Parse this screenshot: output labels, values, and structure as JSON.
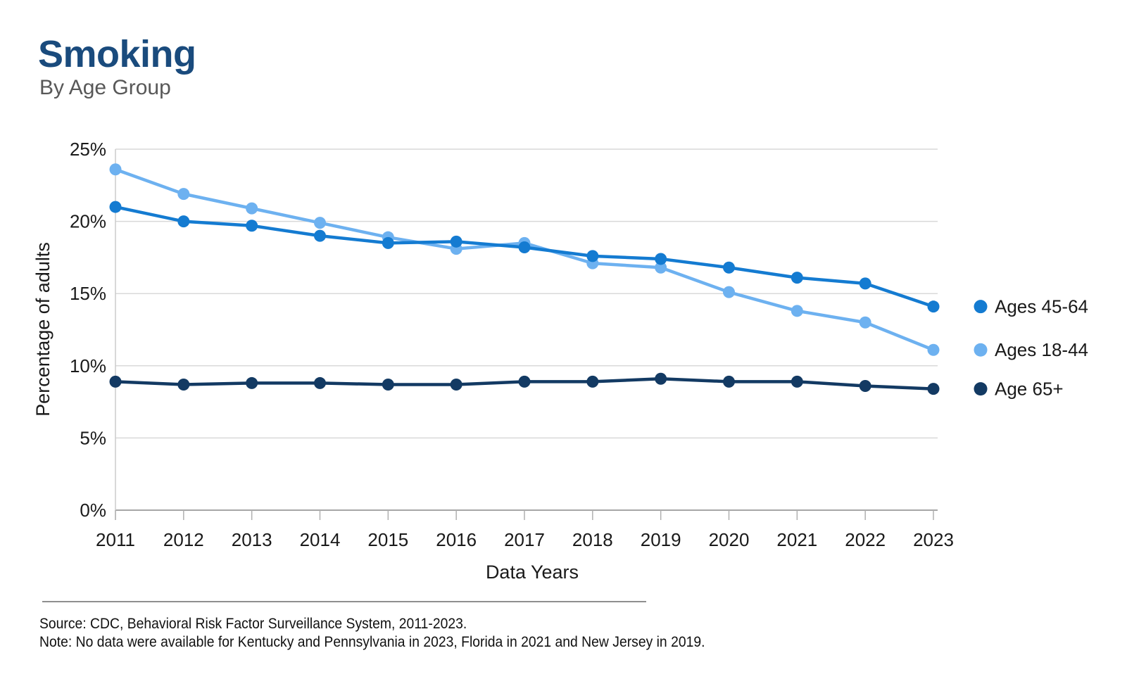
{
  "header": {
    "title": "Smoking",
    "subtitle": "By Age Group",
    "title_color": "#1a4b7d"
  },
  "chart_data": {
    "type": "line",
    "title": "Smoking",
    "subtitle": "By Age Group",
    "x": [
      2011,
      2012,
      2013,
      2014,
      2015,
      2016,
      2017,
      2018,
      2019,
      2020,
      2021,
      2022,
      2023
    ],
    "xlabel": "Data Years",
    "ylabel": "Percentage of adults",
    "ylim": [
      0,
      25
    ],
    "ytick_step": 5,
    "ytick_suffix": "%",
    "grid": true,
    "legend_position": "right of plot, each entry aligned with its line end",
    "series": [
      {
        "name": "Ages 45-64",
        "color": "#147bd1",
        "values": [
          21.0,
          20.0,
          19.7,
          19.0,
          18.5,
          18.6,
          18.2,
          17.6,
          17.4,
          16.8,
          16.1,
          15.7,
          14.1
        ]
      },
      {
        "name": "Ages 18-44",
        "color": "#6db1f0",
        "values": [
          23.6,
          21.9,
          20.9,
          19.9,
          18.9,
          18.1,
          18.5,
          17.1,
          16.8,
          15.1,
          13.8,
          13.0,
          11.1
        ]
      },
      {
        "name": "Age 65+",
        "color": "#133a63",
        "values": [
          8.9,
          8.7,
          8.8,
          8.8,
          8.7,
          8.7,
          8.9,
          8.9,
          9.1,
          8.9,
          8.9,
          8.6,
          8.4
        ]
      }
    ]
  },
  "footer": {
    "source": "Source: CDC, Behavioral Risk Factor Surveillance System, 2011-2023.",
    "note": "Note: No data were available for Kentucky and Pennsylvania in 2023, Florida in 2021 and New Jersey in 2019."
  }
}
